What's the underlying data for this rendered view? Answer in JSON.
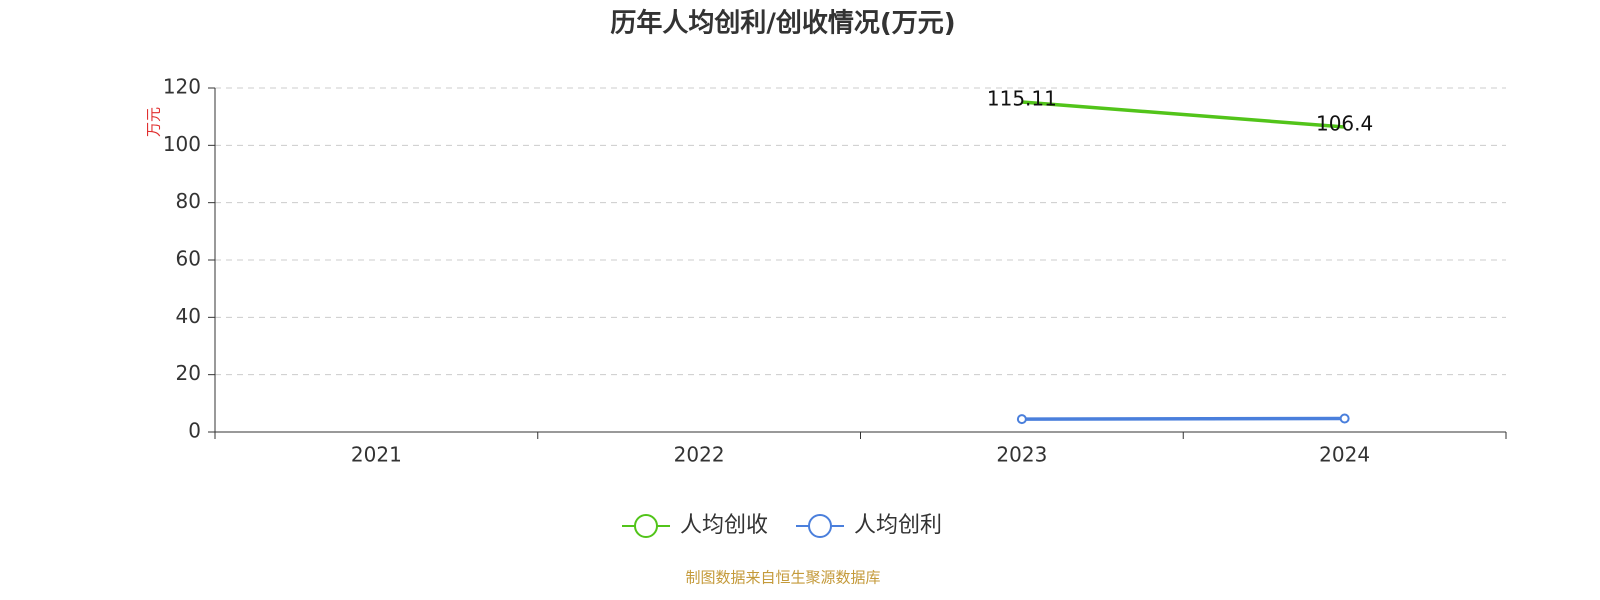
{
  "chart_data": {
    "type": "line",
    "title": "历年人均创利/创收情况(万元)",
    "y_label": "万元",
    "categories": [
      "2021",
      "2022",
      "2023",
      "2024"
    ],
    "series": [
      {
        "name": "人均创收",
        "color": "#52c41a",
        "values": [
          null,
          null,
          115.11,
          106.4
        ],
        "symbol": "none",
        "show_labels": true
      },
      {
        "name": "人均创利",
        "color": "#4a7fdc",
        "values": [
          null,
          null,
          4.5,
          4.7
        ],
        "symbol": "circle",
        "show_labels": false
      }
    ],
    "ylim": [
      0,
      120
    ],
    "yticks": [
      0,
      20,
      40,
      60,
      80,
      100,
      120
    ],
    "grid": true,
    "legend": "bottom",
    "source": "制图数据来自恒生聚源数据库"
  }
}
